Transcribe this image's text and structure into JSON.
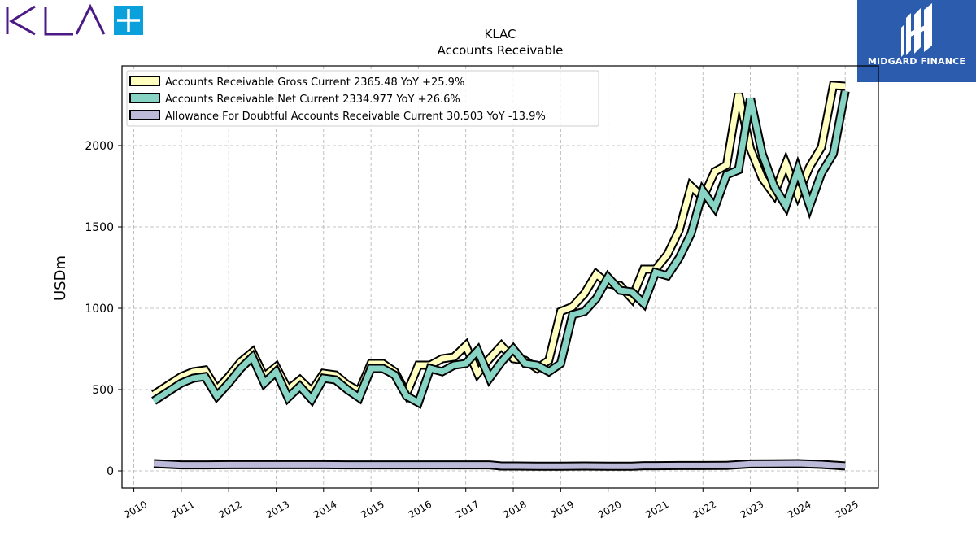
{
  "logos": {
    "left_text": "KLA",
    "right_text": "MIDGARD FINANCE"
  },
  "colors": {
    "gross": "#ffffc0",
    "net": "#88d4c4",
    "allowance": "#bcbad8",
    "outline": "#000000",
    "kla_purple": "#4b1a86",
    "kla_plus": "#0aa0dc",
    "midgard_blue": "#2b5cad"
  },
  "chart_data": {
    "type": "line",
    "title": "KLAC",
    "subtitle": "Accounts Receivable",
    "xlabel": "",
    "ylabel": "USDm",
    "xlim": [
      2009.75,
      2025.7
    ],
    "ylim": [
      -105,
      2490
    ],
    "yticks": [
      0,
      500,
      1000,
      1500,
      2000
    ],
    "xticks": [
      2010,
      2011,
      2012,
      2013,
      2014,
      2015,
      2016,
      2017,
      2018,
      2019,
      2020,
      2021,
      2022,
      2023,
      2024,
      2025
    ],
    "grid": true,
    "legend_position": "top-left",
    "series": [
      {
        "name": "Accounts Receivable Gross Current  2365.48 YoY +25.9%",
        "color_key": "gross",
        "x": [
          2010.42,
          2011.0,
          2011.25,
          2011.5,
          2011.75,
          2012.0,
          2012.25,
          2012.5,
          2012.75,
          2013.0,
          2013.25,
          2013.5,
          2013.75,
          2014.0,
          2014.25,
          2014.5,
          2014.75,
          2015.0,
          2015.25,
          2015.5,
          2015.75,
          2016.0,
          2016.25,
          2016.5,
          2016.75,
          2017.0,
          2017.25,
          2017.5,
          2017.75,
          2018.0,
          2018.25,
          2018.5,
          2018.75,
          2019.0,
          2019.25,
          2019.5,
          2019.75,
          2020.0,
          2020.25,
          2020.5,
          2020.75,
          2021.0,
          2021.25,
          2021.5,
          2021.75,
          2022.0,
          2022.25,
          2022.5,
          2022.75,
          2023.0,
          2023.25,
          2023.5,
          2023.75,
          2024.0,
          2024.25,
          2024.5,
          2024.75,
          2025.0
        ],
        "values": [
          470,
          580,
          610,
          620,
          500,
          580,
          670,
          730,
          580,
          640,
          500,
          560,
          490,
          600,
          590,
          530,
          490,
          660,
          660,
          610,
          475,
          650,
          650,
          690,
          700,
          770,
          600,
          690,
          770,
          690,
          680,
          630,
          680,
          980,
          1010,
          1090,
          1210,
          1150,
          1140,
          1060,
          1240,
          1240,
          1330,
          1480,
          1750,
          1680,
          1840,
          1880,
          2320,
          1980,
          1800,
          1700,
          1890,
          1700,
          1870,
          1990,
          2370,
          2365
        ]
      },
      {
        "name": "Accounts Receivable Net Current  2334.977 YoY +26.6%",
        "color_key": "net",
        "x": [
          2010.42,
          2011.0,
          2011.25,
          2011.5,
          2011.75,
          2012.0,
          2012.25,
          2012.5,
          2012.75,
          2013.0,
          2013.25,
          2013.5,
          2013.75,
          2014.0,
          2014.25,
          2014.5,
          2014.75,
          2015.0,
          2015.25,
          2015.5,
          2015.75,
          2016.0,
          2016.25,
          2016.5,
          2016.75,
          2017.0,
          2017.25,
          2017.5,
          2017.75,
          2018.0,
          2018.25,
          2018.5,
          2018.75,
          2019.0,
          2019.25,
          2019.5,
          2019.75,
          2020.0,
          2020.25,
          2020.5,
          2020.75,
          2021.0,
          2021.25,
          2021.5,
          2021.75,
          2022.0,
          2022.25,
          2022.5,
          2022.75,
          2023.0,
          2023.25,
          2023.5,
          2023.75,
          2024.0,
          2024.25,
          2024.5,
          2024.75,
          2025.0
        ],
        "values": [
          430,
          540,
          570,
          580,
          460,
          540,
          630,
          700,
          540,
          610,
          450,
          520,
          440,
          570,
          560,
          500,
          450,
          630,
          630,
          590,
          460,
          420,
          630,
          610,
          650,
          660,
          740,
          570,
          670,
          750,
          660,
          650,
          610,
          660,
          960,
          980,
          1060,
          1190,
          1110,
          1100,
          1030,
          1220,
          1200,
          1310,
          1460,
          1720,
          1620,
          1820,
          1850,
          2290,
          1950,
          1750,
          1630,
          1850,
          1630,
          1830,
          1950,
          2335
        ]
      },
      {
        "name": "Allowance For Doubtful Accounts Receivable Current  30.503 YoY -13.9%",
        "color_key": "allowance",
        "x": [
          2010.42,
          2011.0,
          2011.5,
          2012.0,
          2012.5,
          2013.0,
          2013.5,
          2014.0,
          2014.5,
          2015.0,
          2015.5,
          2016.0,
          2016.5,
          2017.0,
          2017.5,
          2017.75,
          2018.0,
          2018.5,
          2019.0,
          2019.5,
          2020.0,
          2020.5,
          2020.75,
          2021.0,
          2021.5,
          2022.0,
          2022.5,
          2023.0,
          2023.5,
          2024.0,
          2024.5,
          2025.0
        ],
        "values": [
          45,
          37,
          37,
          38,
          38,
          38,
          38,
          38,
          37,
          37,
          37,
          37,
          37,
          37,
          37,
          30,
          30,
          29,
          29,
          30,
          29,
          29,
          32,
          32,
          33,
          33,
          34,
          43,
          44,
          45,
          40,
          30.5
        ]
      }
    ]
  }
}
